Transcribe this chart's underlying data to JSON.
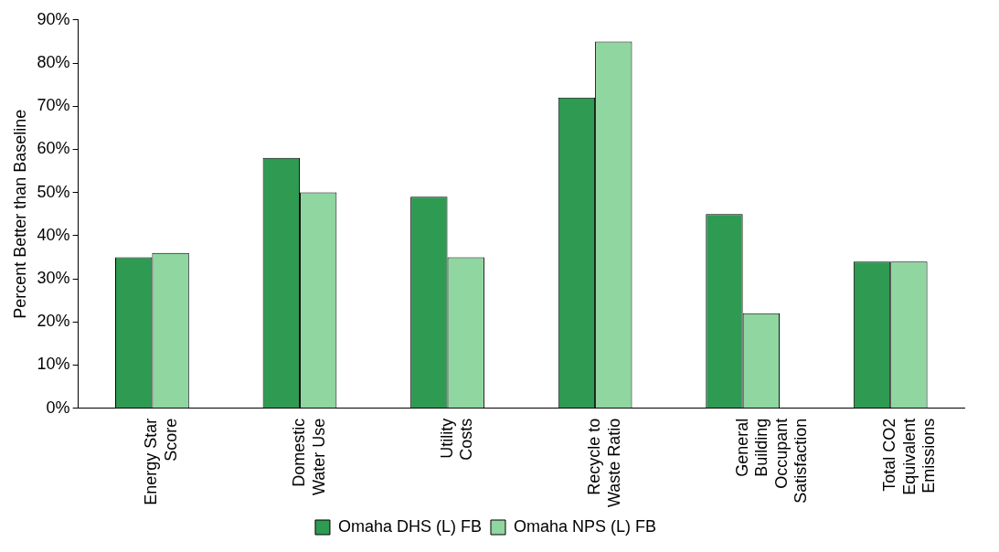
{
  "chart_data": {
    "type": "bar",
    "ylabel": "Percent Better than Baseline",
    "categories": [
      "Energy Star Score",
      "Domestic Water Use",
      "Utility Costs",
      "Recycle to Waste Ratio",
      "General Building Occupant Satisfaction",
      "Total CO2 Equivalent Emissions"
    ],
    "series": [
      {
        "name": "Omaha DHS (L) FB",
        "color": "#2e9a52",
        "values": [
          35,
          58,
          49,
          72,
          45,
          34
        ]
      },
      {
        "name": "Omaha NPS (L) FB",
        "color": "#8fd6a0",
        "values": [
          36,
          50,
          35,
          85,
          22,
          34
        ]
      }
    ],
    "ylim": [
      0,
      90
    ],
    "yticks": [
      {
        "value": 0,
        "label": "0%"
      },
      {
        "value": 10,
        "label": "10%"
      },
      {
        "value": 20,
        "label": "20%"
      },
      {
        "value": 30,
        "label": "30%"
      },
      {
        "value": 40,
        "label": "40%"
      },
      {
        "value": 50,
        "label": "50%"
      },
      {
        "value": 60,
        "label": "60%"
      },
      {
        "value": 70,
        "label": "70%"
      },
      {
        "value": 80,
        "label": "80%"
      },
      {
        "value": 90,
        "label": "90%"
      }
    ],
    "grid": false,
    "legend": "bottom"
  }
}
